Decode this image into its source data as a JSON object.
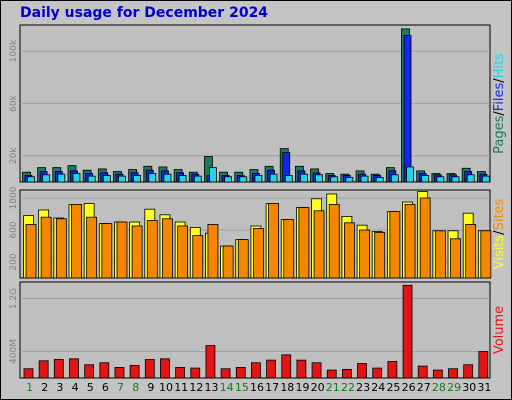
{
  "title": "Daily usage for December 2024",
  "colors": {
    "pages": "#1d7a60",
    "files": "#1128e6",
    "hits": "#22d4e6",
    "sites": "#f58700",
    "visits": "#ffff22",
    "volume": "#e21515",
    "weekend_day": "#1a7a1a",
    "weekday_day": "#000000",
    "panel_bg": "#bfbfbf"
  },
  "chart_data": [
    {
      "type": "bar",
      "panel": "top",
      "y_tick_labels": [
        "20k",
        "60k",
        "100k"
      ],
      "ylim": [
        0,
        120000
      ],
      "legend": [
        "Pages",
        "/",
        "Files",
        "/",
        "Hits"
      ],
      "legend_colors": [
        "#1d7a60",
        "#000000",
        "#1128e6",
        "#000000",
        "#22d4e6"
      ],
      "categories": [
        1,
        2,
        3,
        4,
        5,
        6,
        7,
        8,
        9,
        10,
        11,
        12,
        13,
        14,
        15,
        16,
        17,
        18,
        19,
        20,
        21,
        22,
        23,
        24,
        25,
        26,
        27,
        28,
        29,
        30,
        31
      ],
      "series": [
        {
          "name": "Pages",
          "values": [
            7500,
            11000,
            11000,
            12500,
            9000,
            10000,
            8000,
            9500,
            12000,
            11500,
            9500,
            7500,
            19500,
            7500,
            7500,
            9500,
            12000,
            25500,
            12000,
            10000,
            6500,
            6000,
            8500,
            6000,
            11000,
            117000,
            8500,
            6500,
            6500,
            10500,
            8000
          ]
        },
        {
          "name": "Files",
          "values": [
            5000,
            8000,
            8000,
            8500,
            6500,
            7000,
            6000,
            7000,
            9000,
            8500,
            7000,
            6000,
            5000,
            5000,
            5000,
            6500,
            9000,
            22500,
            8500,
            7000,
            5000,
            5000,
            6000,
            5000,
            8500,
            112000,
            6500,
            5500,
            5500,
            8000,
            6000
          ]
        },
        {
          "name": "Hits",
          "values": [
            4000,
            5500,
            6000,
            6500,
            4500,
            5000,
            4500,
            5000,
            6500,
            6000,
            5000,
            4500,
            11000,
            4000,
            4000,
            5000,
            6000,
            5000,
            6000,
            5500,
            4000,
            3500,
            4500,
            3500,
            5500,
            11500,
            5000,
            4000,
            4000,
            5500,
            4500
          ]
        }
      ]
    },
    {
      "type": "bar",
      "panel": "middle",
      "y_tick_labels": [
        "200",
        "600",
        "1000"
      ],
      "ylim": [
        0,
        1100
      ],
      "legend": [
        "Visits",
        "/",
        "Sites"
      ],
      "legend_colors": [
        "#ffff22",
        "#000000",
        "#f58700"
      ],
      "categories": [
        1,
        2,
        3,
        4,
        5,
        6,
        7,
        8,
        9,
        10,
        11,
        12,
        13,
        14,
        15,
        16,
        17,
        18,
        19,
        20,
        21,
        22,
        23,
        24,
        25,
        26,
        27,
        28,
        29,
        30,
        31
      ],
      "series": [
        {
          "name": "Visits",
          "values": [
            780,
            850,
            750,
            920,
            930,
            680,
            700,
            700,
            860,
            790,
            700,
            630,
            560,
            400,
            480,
            650,
            930,
            730,
            880,
            990,
            1050,
            770,
            660,
            580,
            830,
            950,
            1080,
            590,
            590,
            810,
            590
          ]
        },
        {
          "name": "Sites",
          "values": [
            670,
            760,
            740,
            920,
            760,
            680,
            700,
            650,
            720,
            740,
            650,
            530,
            670,
            400,
            480,
            620,
            930,
            730,
            880,
            840,
            920,
            690,
            600,
            570,
            830,
            920,
            1000,
            590,
            490,
            670,
            590
          ]
        }
      ]
    },
    {
      "type": "bar",
      "panel": "bottom",
      "y_tick_labels": [
        "400M",
        "1.2G"
      ],
      "ylim": [
        0,
        1.45
      ],
      "legend": [
        "Volume"
      ],
      "legend_colors": [
        "#e21515"
      ],
      "categories": [
        1,
        2,
        3,
        4,
        5,
        6,
        7,
        8,
        9,
        10,
        11,
        12,
        13,
        14,
        15,
        16,
        17,
        18,
        19,
        20,
        21,
        22,
        23,
        24,
        25,
        26,
        27,
        28,
        29,
        30,
        31
      ],
      "series": [
        {
          "name": "Volume",
          "values": [
            0.14,
            0.26,
            0.28,
            0.29,
            0.2,
            0.23,
            0.16,
            0.19,
            0.28,
            0.29,
            0.16,
            0.15,
            0.49,
            0.14,
            0.16,
            0.23,
            0.27,
            0.35,
            0.27,
            0.23,
            0.12,
            0.13,
            0.22,
            0.15,
            0.25,
            1.4,
            0.18,
            0.12,
            0.14,
            0.2,
            0.4
          ]
        }
      ]
    }
  ],
  "x_day_labels": [
    "1",
    "2",
    "3",
    "4",
    "5",
    "6",
    "7",
    "8",
    "9",
    "10",
    "11",
    "12",
    "13",
    "14",
    "15",
    "16",
    "17",
    "18",
    "19",
    "20",
    "21",
    "22",
    "23",
    "24",
    "25",
    "26",
    "27",
    "28",
    "29",
    "30",
    "31"
  ],
  "weekend_days": [
    1,
    7,
    8,
    14,
    15,
    21,
    22,
    28,
    29
  ]
}
